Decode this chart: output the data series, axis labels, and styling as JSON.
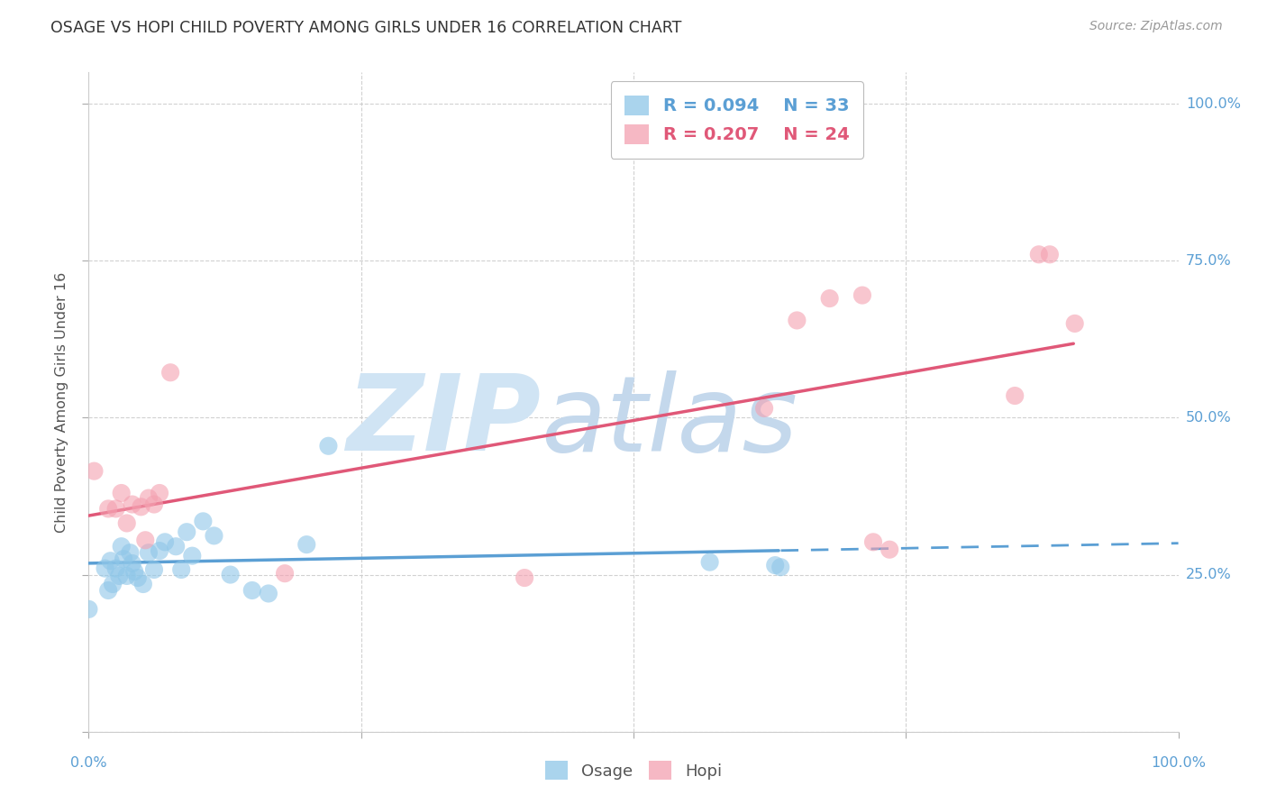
{
  "title": "OSAGE VS HOPI CHILD POVERTY AMONG GIRLS UNDER 16 CORRELATION CHART",
  "source": "Source: ZipAtlas.com",
  "ylabel": "Child Poverty Among Girls Under 16",
  "osage_R": 0.094,
  "osage_N": 33,
  "hopi_R": 0.207,
  "hopi_N": 24,
  "osage_color": "#8ec6e8",
  "hopi_color": "#f4a0b0",
  "trend_osage_color": "#5b9fd4",
  "trend_hopi_color": "#e05878",
  "axis_label_color": "#5b9fd4",
  "watermark_zip_color": "#d0e4f4",
  "watermark_atlas_color": "#c4d8ec",
  "osage_x": [
    0.0,
    0.015,
    0.018,
    0.02,
    0.022,
    0.025,
    0.028,
    0.03,
    0.032,
    0.035,
    0.038,
    0.04,
    0.042,
    0.045,
    0.05,
    0.055,
    0.06,
    0.065,
    0.07,
    0.08,
    0.085,
    0.09,
    0.095,
    0.105,
    0.115,
    0.13,
    0.15,
    0.165,
    0.2,
    0.22,
    0.57,
    0.63,
    0.635
  ],
  "osage_y": [
    0.195,
    0.26,
    0.225,
    0.272,
    0.235,
    0.26,
    0.248,
    0.295,
    0.275,
    0.248,
    0.285,
    0.268,
    0.255,
    0.245,
    0.235,
    0.285,
    0.258,
    0.288,
    0.302,
    0.295,
    0.258,
    0.318,
    0.28,
    0.335,
    0.312,
    0.25,
    0.225,
    0.22,
    0.298,
    0.455,
    0.27,
    0.265,
    0.262
  ],
  "hopi_x": [
    0.005,
    0.018,
    0.025,
    0.03,
    0.035,
    0.04,
    0.048,
    0.052,
    0.055,
    0.06,
    0.065,
    0.075,
    0.18,
    0.4,
    0.62,
    0.65,
    0.68,
    0.71,
    0.72,
    0.735,
    0.85,
    0.872,
    0.882,
    0.905
  ],
  "hopi_y": [
    0.415,
    0.355,
    0.355,
    0.38,
    0.332,
    0.362,
    0.358,
    0.305,
    0.372,
    0.362,
    0.38,
    0.572,
    0.252,
    0.245,
    0.515,
    0.655,
    0.69,
    0.695,
    0.302,
    0.29,
    0.535,
    0.76,
    0.76,
    0.65
  ],
  "xlim": [
    0.0,
    1.0
  ],
  "ylim": [
    0.0,
    1.05
  ],
  "ytick_vals": [
    0.0,
    0.25,
    0.5,
    0.75,
    1.0
  ],
  "ytick_labels": [
    "",
    "25.0%",
    "50.0%",
    "75.0%",
    "100.0%"
  ],
  "xtick_vals": [
    0.0,
    0.25,
    0.5,
    0.75,
    1.0
  ],
  "xtick_label_left": "0.0%",
  "xtick_label_right": "100.0%"
}
